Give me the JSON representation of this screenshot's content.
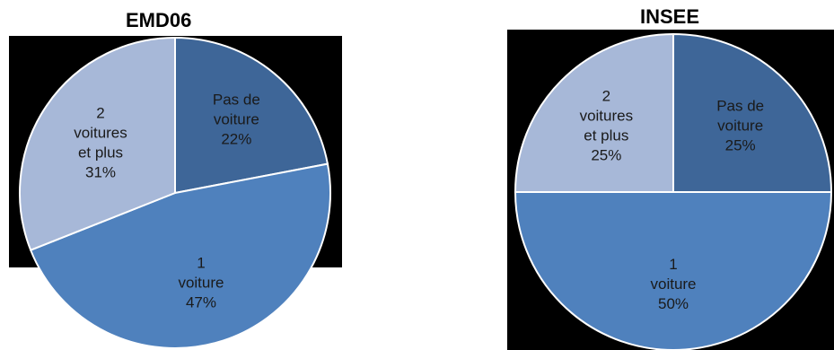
{
  "chart_data": [
    {
      "type": "pie",
      "title": "EMD06",
      "slices": [
        {
          "label_lines": [
            "Pas de",
            "voiture"
          ],
          "value": 22,
          "value_label": "22%",
          "color": "#3E6698"
        },
        {
          "label_lines": [
            "1",
            "voiture"
          ],
          "value": 47,
          "value_label": "47%",
          "color": "#4F81BD"
        },
        {
          "label_lines": [
            "2",
            "voitures",
            "et plus"
          ],
          "value": 31,
          "value_label": "31%",
          "color": "#A7B8D8"
        }
      ]
    },
    {
      "type": "pie",
      "title": "INSEE",
      "slices": [
        {
          "label_lines": [
            "Pas de",
            "voiture"
          ],
          "value": 25,
          "value_label": "25%",
          "color": "#3E6698"
        },
        {
          "label_lines": [
            "1",
            "voiture"
          ],
          "value": 50,
          "value_label": "50%",
          "color": "#4F81BD"
        },
        {
          "label_lines": [
            "2",
            "voitures",
            "et plus"
          ],
          "value": 25,
          "value_label": "25%",
          "color": "#A7B8D8"
        }
      ]
    }
  ]
}
